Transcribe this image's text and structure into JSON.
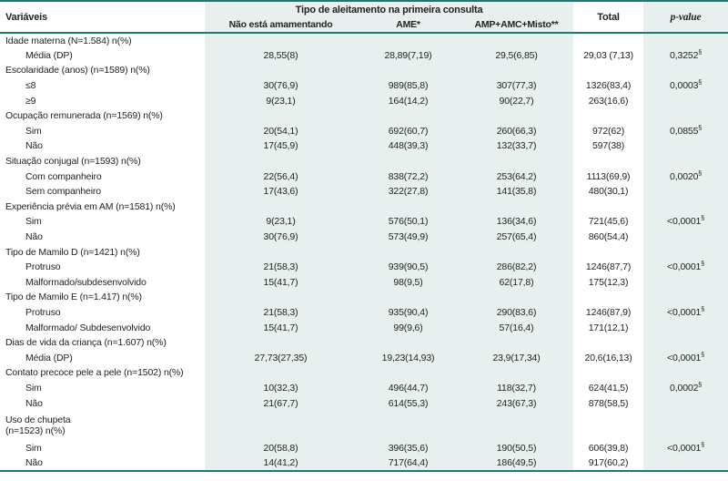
{
  "accent_colors": {
    "teal_line": "#1b7b73",
    "teal_band": "#e7f0ee",
    "text": "#232323"
  },
  "table": {
    "header": {
      "variables": "Variáveis",
      "group": "Tipo de aleitamento na primeira consulta",
      "sub": [
        "Não está amamentando",
        "AME*",
        "AMP+AMC+Misto**"
      ],
      "total": "Total",
      "pvalue": "p-value"
    },
    "rows": [
      {
        "label": "Idade materna (N=1.584) n(%)",
        "indent": false,
        "c": [
          "",
          "",
          "",
          ""
        ],
        "p": "",
        "p_sup": ""
      },
      {
        "label": "Média (DP)",
        "indent": true,
        "c": [
          "28,55(8)",
          "28,89(7,19)",
          "29,5(6,85)",
          "29,03 (7,13)"
        ],
        "p": "0,3252",
        "p_sup": "§"
      },
      {
        "label": "Escolaridade (anos) (n=1589) n(%)",
        "indent": false,
        "c": [
          "",
          "",
          "",
          ""
        ],
        "p": "",
        "p_sup": ""
      },
      {
        "label": "≤8",
        "indent": true,
        "c": [
          "30(76,9)",
          "989(85,8)",
          "307(77,3)",
          "1326(83,4)"
        ],
        "p": "0,0003",
        "p_sup": "§"
      },
      {
        "label": "≥9",
        "indent": true,
        "c": [
          "9(23,1)",
          "164(14,2)",
          "90(22,7)",
          "263(16,6)"
        ],
        "p": "",
        "p_sup": ""
      },
      {
        "label": "Ocupação remunerada (n=1569) n(%)",
        "indent": false,
        "c": [
          "",
          "",
          "",
          ""
        ],
        "p": "",
        "p_sup": ""
      },
      {
        "label": "Sim",
        "indent": true,
        "c": [
          "20(54,1)",
          "692(60,7)",
          "260(66,3)",
          "972(62)"
        ],
        "p": "0,0855",
        "p_sup": "§"
      },
      {
        "label": "Não",
        "indent": true,
        "c": [
          "17(45,9)",
          "448(39,3)",
          "132(33,7)",
          "597(38)"
        ],
        "p": "",
        "p_sup": ""
      },
      {
        "label": "Situação conjugal (n=1593) n(%)",
        "indent": false,
        "c": [
          "",
          "",
          "",
          ""
        ],
        "p": "",
        "p_sup": ""
      },
      {
        "label": "Com companheiro",
        "indent": true,
        "c": [
          "22(56,4)",
          "838(72,2)",
          "253(64,2)",
          "1113(69,9)"
        ],
        "p": "0,0020",
        "p_sup": "§"
      },
      {
        "label": "Sem companheiro",
        "indent": true,
        "c": [
          "17(43,6)",
          "322(27,8)",
          "141(35,8)",
          "480(30,1)"
        ],
        "p": "",
        "p_sup": ""
      },
      {
        "label": "Experiência prévia em AM (n=1581) n(%)",
        "indent": false,
        "c": [
          "",
          "",
          "",
          ""
        ],
        "p": "",
        "p_sup": ""
      },
      {
        "label": "Sim",
        "indent": true,
        "c": [
          "9(23,1)",
          "576(50,1)",
          "136(34,6)",
          "721(45,6)"
        ],
        "p": "<0,0001",
        "p_sup": "§"
      },
      {
        "label": "Não",
        "indent": true,
        "c": [
          "30(76,9)",
          "573(49,9)",
          "257(65,4)",
          "860(54,4)"
        ],
        "p": "",
        "p_sup": ""
      },
      {
        "label": "Tipo de Mamilo D (n=1421) n(%)",
        "indent": false,
        "c": [
          "",
          "",
          "",
          ""
        ],
        "p": "",
        "p_sup": ""
      },
      {
        "label": "Protruso",
        "indent": true,
        "c": [
          "21(58,3)",
          "939(90,5)",
          "286(82,2)",
          "1246(87,7)"
        ],
        "p": "<0,0001",
        "p_sup": "§"
      },
      {
        "label": "Malformado/subdesenvolvido",
        "indent": true,
        "c": [
          "15(41,7)",
          "98(9,5)",
          "62(17,8)",
          "175(12,3)"
        ],
        "p": "",
        "p_sup": ""
      },
      {
        "label": "Tipo de Mamilo E (n=1.417) n(%)",
        "indent": false,
        "c": [
          "",
          "",
          "",
          ""
        ],
        "p": "",
        "p_sup": ""
      },
      {
        "label": "Protruso",
        "indent": true,
        "c": [
          "21(58,3)",
          "935(90,4)",
          "290(83,6)",
          "1246(87,9)"
        ],
        "p": "<0,0001",
        "p_sup": "§"
      },
      {
        "label": "Malformado/ Subdesenvolvido",
        "indent": true,
        "c": [
          "15(41,7)",
          "99(9,6)",
          "57(16,4)",
          "171(12,1)"
        ],
        "p": "",
        "p_sup": ""
      },
      {
        "label": "Dias de vida da criança (n=1.607) n(%)",
        "indent": false,
        "c": [
          "",
          "",
          "",
          ""
        ],
        "p": "",
        "p_sup": ""
      },
      {
        "label": "Média (DP)",
        "indent": true,
        "c": [
          "27,73(27,35)",
          "19,23(14,93)",
          "23,9(17,34)",
          "20,6(16,13)"
        ],
        "p": "<0,0001",
        "p_sup": "§"
      },
      {
        "label": "Contato precoce pele a pele (n=1502) n(%)",
        "indent": false,
        "c": [
          "",
          "",
          "",
          ""
        ],
        "p": "",
        "p_sup": ""
      },
      {
        "label": "Sim",
        "indent": true,
        "c": [
          "10(32,3)",
          "496(44,7)",
          "118(32,7)",
          "624(41,5)"
        ],
        "p": "0,0002",
        "p_sup": "§"
      },
      {
        "label": "Não",
        "indent": true,
        "c": [
          "21(67,7)",
          "614(55,3)",
          "243(67,3)",
          "878(58,5)"
        ],
        "p": "",
        "p_sup": ""
      },
      {
        "label": "Uso de chupeta\n(n=1523) n(%)",
        "indent": false,
        "double": true,
        "c": [
          "",
          "",
          "",
          ""
        ],
        "p": "",
        "p_sup": ""
      },
      {
        "label": "Sim",
        "indent": true,
        "c": [
          "20(58,8)",
          "396(35,6)",
          "190(50,5)",
          "606(39,8)"
        ],
        "p": "<0,0001",
        "p_sup": "§"
      },
      {
        "label": "Não",
        "indent": true,
        "c": [
          "14(41,2)",
          "717(64,4)",
          "186(49,5)",
          "917(60,2)"
        ],
        "p": "",
        "p_sup": ""
      }
    ]
  }
}
